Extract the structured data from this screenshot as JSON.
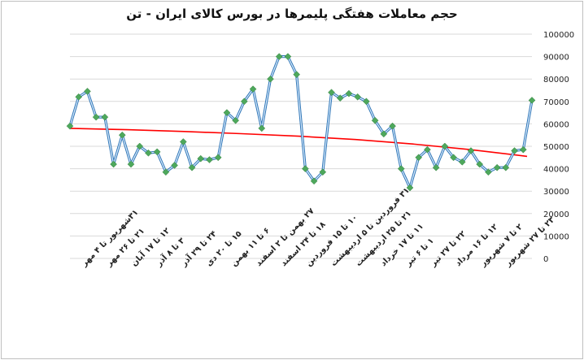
{
  "chart_data": {
    "type": "line",
    "title": "حجم معاملات هفتگی پلیمرها در بورس کالای ایران - تن",
    "ylim": [
      0,
      100000
    ],
    "yticks": [
      0,
      10000,
      20000,
      30000,
      40000,
      50000,
      60000,
      70000,
      80000,
      90000,
      100000
    ],
    "ytick_labels": [
      "0",
      "10000",
      "20000",
      "30000",
      "40000",
      "50000",
      "60000",
      "70000",
      "80000",
      "90000",
      "100000"
    ],
    "grid": true,
    "x_labels": [
      "۳۱شهریور تا ۴ مهر",
      "۲۱ تا ۲۶ مهر",
      "۱۲ تا ۱۷ آبان",
      "۳ تا ۸ آذر",
      "۲۴ تا ۲۹ آذر",
      "۱۵ تا ۲۰ دی",
      "۶ تا ۱۱ بهمن",
      "۲۷ بهمن تا ۲ اسفند",
      "۱۸ تا ۲۴ اسفند",
      "۱۰ تا ۱۵ فروردین",
      "۳۱ فروردین تا ۵ اردیبهشت",
      "۲۱ تا ۲۵ اردیبهشت",
      "۱۱ تا ۱۷ خرداد",
      "۱ تا ۶ تیر",
      "۲۲ تا ۲۷ تیر",
      "۱۲ تا ۱۶ مرداد",
      "۲ تا ۷ شهریور",
      "۲۳ تا ۲۷ شهریور"
    ],
    "series": [
      {
        "type": "line",
        "color": "#5b9bd5",
        "marker_color": "#4ea85c",
        "values": [
          59000,
          72000,
          74500,
          63000,
          63000,
          42000,
          55000,
          42000,
          50000,
          47000,
          47500,
          38500,
          41500,
          52000,
          40500,
          44500,
          44000,
          45000,
          65000,
          61500,
          70000,
          75500,
          58000,
          80000,
          90000,
          90000,
          82000,
          40000,
          34500,
          38500,
          74000,
          71500,
          73500,
          72000,
          70000,
          61500,
          55500,
          59000,
          40000,
          31500,
          45000,
          48500,
          40500,
          50000,
          45000,
          43000,
          48000,
          42000,
          38500,
          40500,
          40500,
          48000,
          48500,
          70500
        ]
      },
      {
        "type": "line",
        "color": "#ff0000",
        "values": [
          58000,
          57400,
          56600,
          55600,
          54500,
          53000,
          51000,
          48500,
          45500
        ]
      }
    ]
  }
}
